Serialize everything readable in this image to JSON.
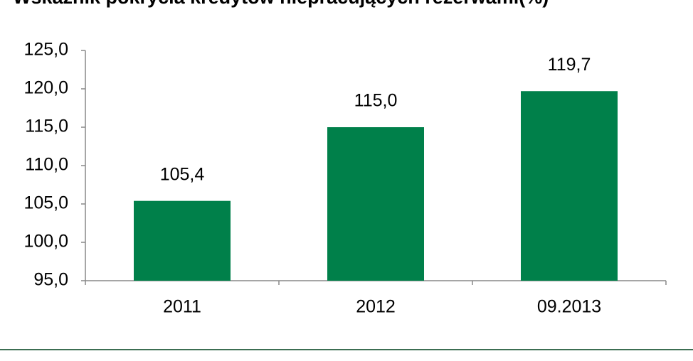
{
  "chart_data": {
    "type": "bar",
    "title": "Wskaźnik pokrycia kredytów niepracujących rezerwami(%)",
    "categories": [
      "2011",
      "2012",
      "09.2013"
    ],
    "values": [
      105.4,
      115.0,
      119.7
    ],
    "value_labels": [
      "105,4",
      "115,0",
      "119,7"
    ],
    "color": "#00804a",
    "ylim": [
      95,
      125
    ],
    "yticks": [
      {
        "value": 95,
        "label": "95,0"
      },
      {
        "value": 100,
        "label": "100,0"
      },
      {
        "value": 105,
        "label": "105,0"
      },
      {
        "value": 110,
        "label": "110,0"
      },
      {
        "value": 115,
        "label": "115,0"
      },
      {
        "value": 120,
        "label": "120,0"
      },
      {
        "value": 125,
        "label": "125,0"
      }
    ],
    "grid": false
  }
}
